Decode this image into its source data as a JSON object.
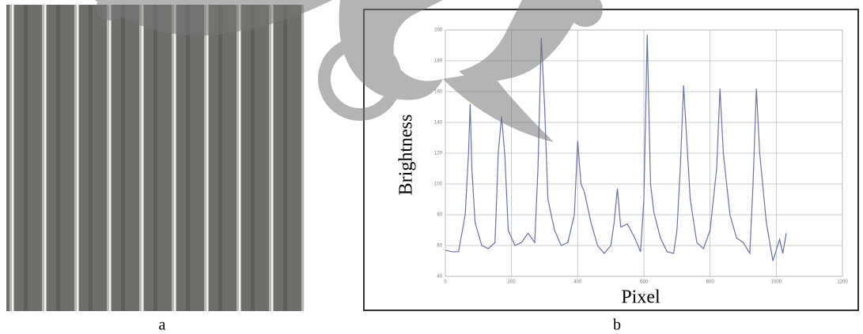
{
  "chart_data": {
    "type": "line",
    "y_label": "Brightness",
    "x_label": "Pixel",
    "x": [
      0,
      20,
      40,
      60,
      70,
      75,
      80,
      90,
      110,
      130,
      150,
      160,
      170,
      180,
      190,
      210,
      230,
      250,
      270,
      280,
      290,
      300,
      310,
      330,
      350,
      370,
      390,
      400,
      410,
      420,
      440,
      460,
      480,
      500,
      510,
      520,
      530,
      550,
      570,
      590,
      600,
      610,
      620,
      630,
      650,
      670,
      690,
      700,
      710,
      720,
      740,
      760,
      780,
      800,
      820,
      830,
      840,
      860,
      880,
      900,
      920,
      930,
      940,
      950,
      970,
      990,
      1010,
      1020,
      1030
    ],
    "values": [
      57,
      56,
      56,
      80,
      120,
      152,
      110,
      75,
      60,
      58,
      62,
      120,
      144,
      118,
      70,
      60,
      62,
      68,
      62,
      110,
      195,
      150,
      90,
      70,
      60,
      62,
      80,
      128,
      100,
      95,
      75,
      60,
      55,
      60,
      75,
      97,
      72,
      74,
      66,
      56,
      90,
      197,
      100,
      82,
      65,
      56,
      55,
      70,
      110,
      164,
      90,
      62,
      58,
      70,
      110,
      162,
      120,
      80,
      65,
      62,
      55,
      100,
      162,
      120,
      75,
      50,
      64,
      55,
      68
    ],
    "color": "#6b6fa8",
    "xlim": [
      0,
      1200
    ],
    "xticks": [
      0,
      200,
      400,
      600,
      800,
      1000,
      1200
    ],
    "ylim": [
      40,
      200
    ],
    "yticks": [
      40,
      60,
      80,
      100,
      120,
      140,
      160,
      180,
      200
    ],
    "grid": true
  },
  "captions": [
    "a",
    "b"
  ]
}
